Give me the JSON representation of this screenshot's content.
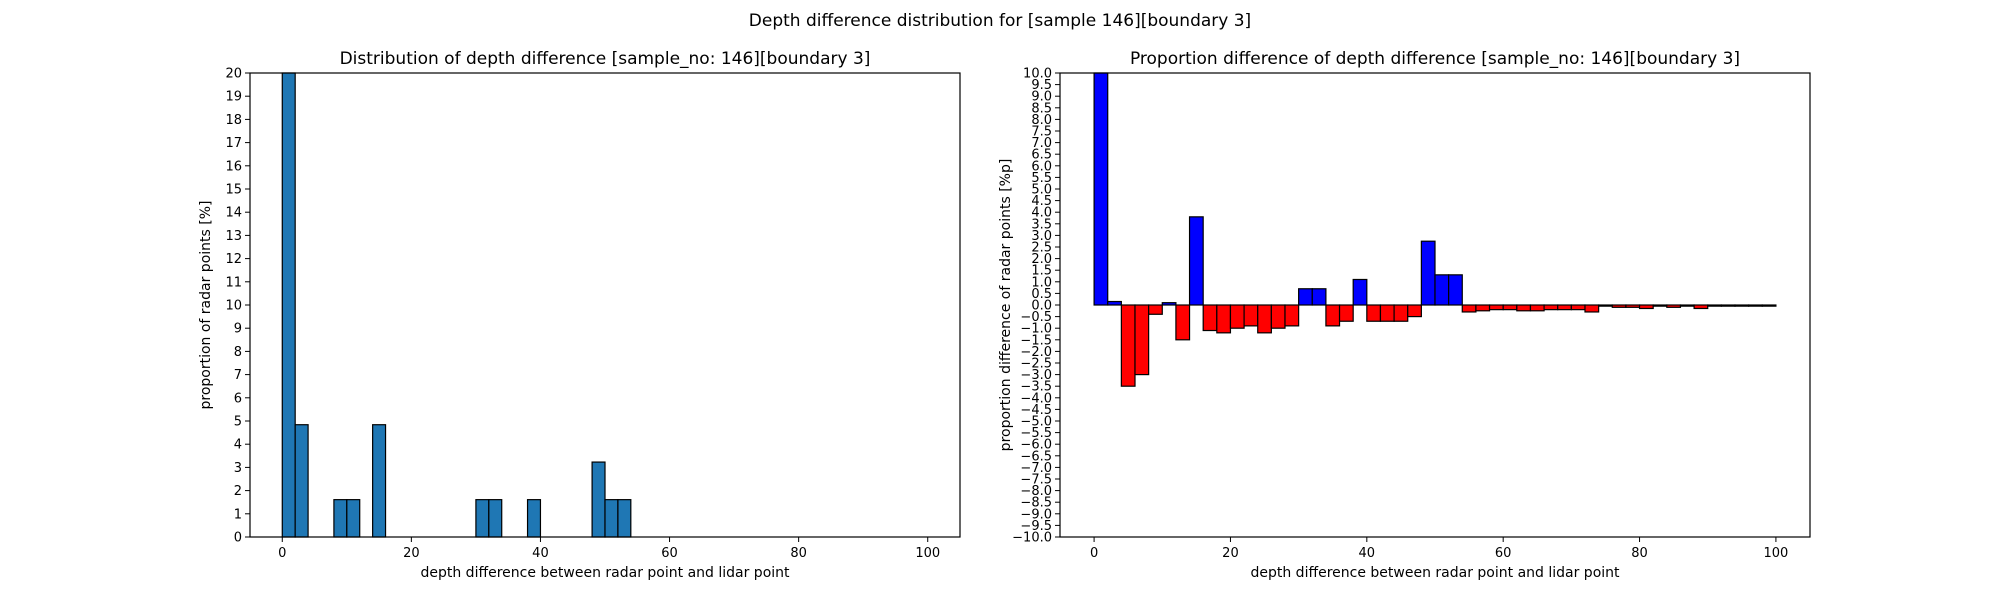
{
  "figure": {
    "suptitle": "Depth difference distribution for [sample 146][boundary 3]"
  },
  "chart_data": [
    {
      "type": "bar",
      "title": "Distribution of depth difference [sample_no: 146][boundary 3]",
      "xlabel": "depth difference between radar point and lidar point",
      "ylabel": "proportion of radar points [%]",
      "xlim": [
        -5,
        105
      ],
      "ylim": [
        0,
        20
      ],
      "xticks": [
        0,
        20,
        40,
        60,
        80,
        100
      ],
      "yticks": [
        0,
        1,
        2,
        3,
        4,
        5,
        6,
        7,
        8,
        9,
        10,
        11,
        12,
        13,
        14,
        15,
        16,
        17,
        18,
        19,
        20
      ],
      "bin_width": 2,
      "color": "#1f77b4",
      "bins": [
        0,
        2,
        4,
        6,
        8,
        10,
        12,
        14,
        16,
        18,
        20,
        22,
        24,
        26,
        28,
        30,
        32,
        34,
        36,
        38,
        40,
        42,
        44,
        46,
        48,
        50,
        52
      ],
      "values": [
        20,
        4.84,
        0,
        0,
        1.61,
        1.61,
        0,
        4.84,
        0,
        0,
        0,
        0,
        0,
        0,
        0,
        1.61,
        1.61,
        0,
        0,
        1.61,
        0,
        0,
        0,
        0,
        3.23,
        1.61,
        1.61
      ]
    },
    {
      "type": "bar",
      "title": "Proportion difference of depth difference [sample_no: 146][boundary 3]",
      "xlabel": "depth difference between radar point and lidar point",
      "ylabel": "proportion difference of radar points [%p]",
      "xlim": [
        -5,
        105
      ],
      "ylim": [
        -10,
        10
      ],
      "xticks": [
        0,
        20,
        40,
        60,
        80,
        100
      ],
      "yticks": [
        -10,
        -9.5,
        -9,
        -8.5,
        -8,
        -7.5,
        -7,
        -6.5,
        -6,
        -5.5,
        -5,
        -4.5,
        -4,
        -3.5,
        -3,
        -2.5,
        -2,
        -1.5,
        -1,
        -0.5,
        0,
        0.5,
        1,
        1.5,
        2,
        2.5,
        3,
        3.5,
        4,
        4.5,
        5,
        5.5,
        6,
        6.5,
        7,
        7.5,
        8,
        8.5,
        9,
        9.5,
        10
      ],
      "bin_width": 2,
      "positive_color": "#0000ff",
      "negative_color": "#ff0000",
      "bins": [
        0,
        2,
        4,
        6,
        8,
        10,
        12,
        14,
        16,
        18,
        20,
        22,
        24,
        26,
        28,
        30,
        32,
        34,
        36,
        38,
        40,
        42,
        44,
        46,
        48,
        50,
        52,
        54,
        56,
        58,
        60,
        62,
        64,
        66,
        68,
        70,
        72,
        74,
        76,
        78,
        80,
        82,
        84,
        86,
        88,
        90,
        92,
        94,
        96,
        98
      ],
      "values": [
        10,
        0.15,
        -3.5,
        -3.0,
        -0.4,
        0.1,
        -1.5,
        3.8,
        -1.1,
        -1.2,
        -1.0,
        -0.9,
        -1.2,
        -1.0,
        -0.9,
        0.7,
        0.7,
        -0.9,
        -0.7,
        1.1,
        -0.7,
        -0.7,
        -0.7,
        -0.5,
        2.75,
        1.3,
        1.3,
        -0.3,
        -0.25,
        -0.2,
        -0.2,
        -0.25,
        -0.25,
        -0.2,
        -0.2,
        -0.2,
        -0.3,
        -0.05,
        -0.1,
        -0.1,
        -0.15,
        -0.05,
        -0.1,
        -0.05,
        -0.15,
        -0.05,
        -0.05,
        -0.05,
        -0.05,
        -0.05
      ]
    }
  ]
}
